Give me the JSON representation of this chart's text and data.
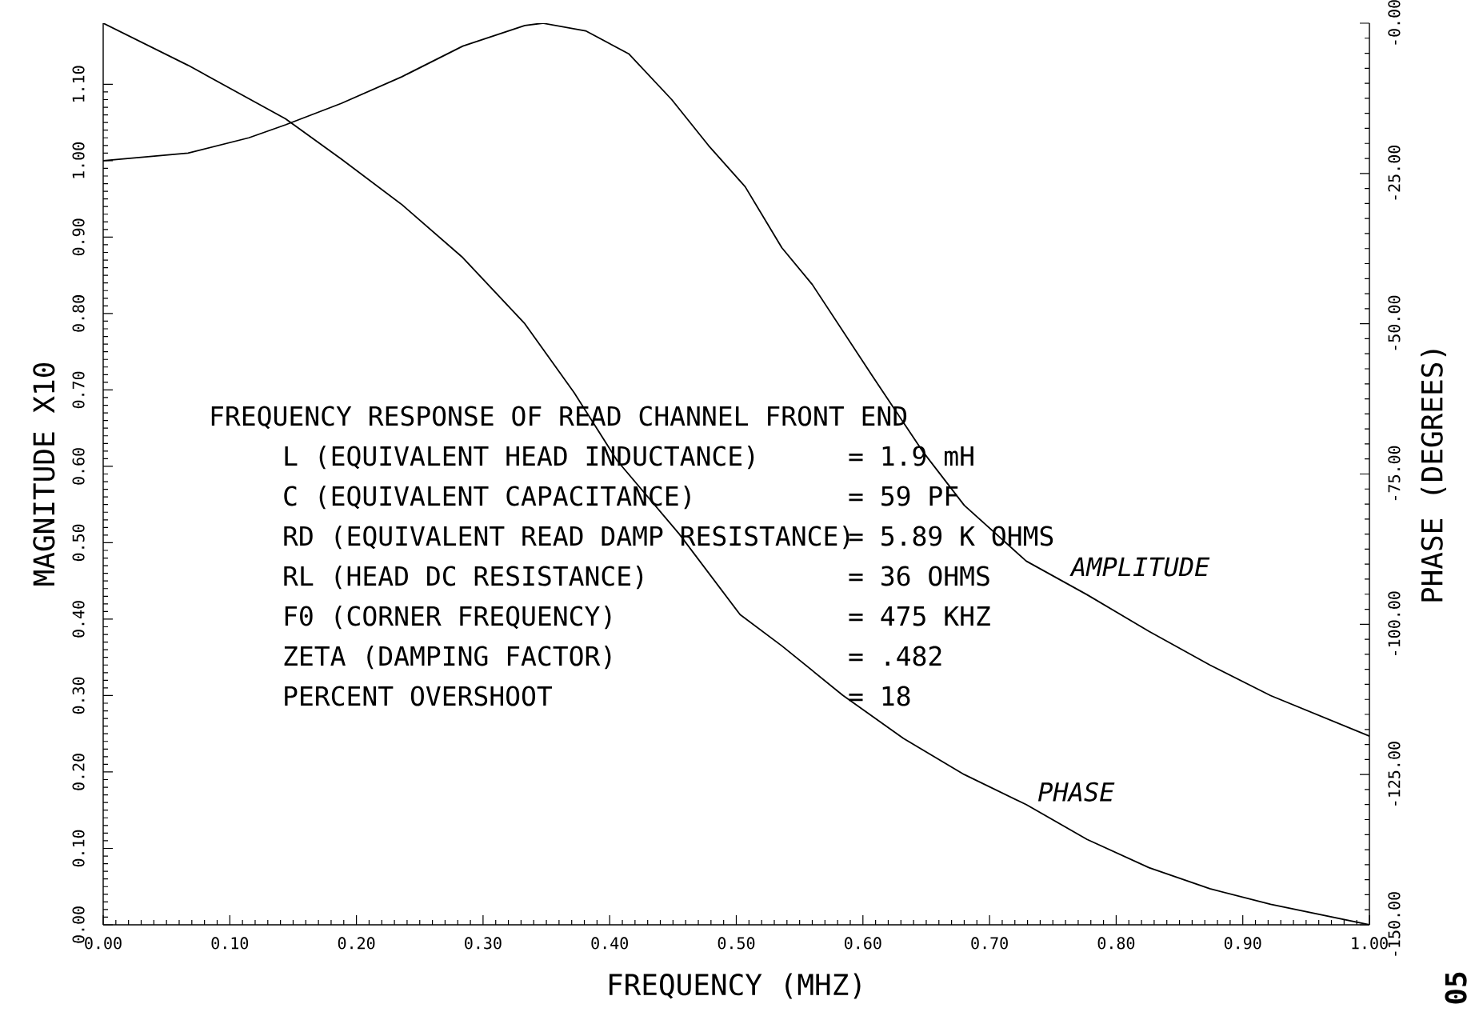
{
  "chart_data": {
    "type": "line",
    "title": "FREQUENCY RESPONSE OF READ CHANNEL FRONT END",
    "xlabel": "FREQUENCY (MHZ)",
    "ylabel": "MAGNITUDE X10",
    "y2label": "PHASE (DEGREES)",
    "series": [
      {
        "name": "AMPLITUDE",
        "color": "#000000",
        "x": [
          0,
          0.067,
          0.115,
          0.144,
          0.188,
          0.236,
          0.284,
          0.333,
          0.347,
          0.381,
          0.415,
          0.449,
          0.478,
          0.507,
          0.536,
          0.56,
          0.608,
          0.647,
          0.68,
          0.729,
          0.777,
          0.826,
          0.874,
          0.922,
          1.0
        ],
        "values": [
          1.0,
          1.01,
          1.03,
          1.047,
          1.075,
          1.11,
          1.15,
          1.177,
          1.18,
          1.17,
          1.14,
          1.08,
          1.02,
          0.966,
          0.886,
          0.838,
          0.717,
          0.62,
          0.549,
          0.476,
          0.432,
          0.384,
          0.34,
          0.3,
          0.247
        ]
      },
      {
        "name": "PHASE",
        "color": "#000000",
        "axis": "y2",
        "x": [
          0,
          0.067,
          0.144,
          0.188,
          0.236,
          0.284,
          0.333,
          0.372,
          0.406,
          0.455,
          0.503,
          0.536,
          0.584,
          0.632,
          0.68,
          0.729,
          0.777,
          0.826,
          0.874,
          0.922,
          1.0
        ],
        "values": [
          0,
          -7,
          -15.9,
          -22.6,
          -30.2,
          -39,
          -50,
          -61.5,
          -72.8,
          -85,
          -98.4,
          -103.6,
          -111.8,
          -119,
          -125,
          -130,
          -135.8,
          -140.5,
          -144,
          -146.6,
          -150
        ]
      }
    ],
    "xlim": [
      0,
      1
    ],
    "ylim": [
      0,
      1.18
    ],
    "y2lim": [
      -150,
      0
    ],
    "xticks": [
      {
        "value": 0,
        "label": "0.00"
      },
      {
        "value": 0.1,
        "label": "0.10"
      },
      {
        "value": 0.2,
        "label": "0.20"
      },
      {
        "value": 0.3,
        "label": "0.30"
      },
      {
        "value": 0.4,
        "label": "0.40"
      },
      {
        "value": 0.5,
        "label": "0.50"
      },
      {
        "value": 0.6,
        "label": "0.60"
      },
      {
        "value": 0.7,
        "label": "0.70"
      },
      {
        "value": 0.8,
        "label": "0.80"
      },
      {
        "value": 0.9,
        "label": "0.90"
      },
      {
        "value": 1,
        "label": "1.00"
      }
    ],
    "yticks": [
      {
        "value": 0,
        "label": "0.00"
      },
      {
        "value": 0.1,
        "label": "0.10"
      },
      {
        "value": 0.2,
        "label": "0.20"
      },
      {
        "value": 0.3,
        "label": "0.30"
      },
      {
        "value": 0.4,
        "label": "0.40"
      },
      {
        "value": 0.5,
        "label": "0.50"
      },
      {
        "value": 0.6,
        "label": "0.60"
      },
      {
        "value": 0.7,
        "label": "0.70"
      },
      {
        "value": 0.8,
        "label": "0.80"
      },
      {
        "value": 0.9,
        "label": "0.90"
      },
      {
        "value": 1,
        "label": "1.00"
      },
      {
        "value": 1.1,
        "label": "1.10"
      }
    ],
    "y2ticks": [
      {
        "value": -150,
        "label": "-150.00"
      },
      {
        "value": -125,
        "label": "-125.00"
      },
      {
        "value": -100,
        "label": "-100.00"
      },
      {
        "value": -75,
        "label": "-75.00"
      },
      {
        "value": -50,
        "label": "-50.00"
      },
      {
        "value": -25,
        "label": "-25.00"
      },
      {
        "value": 0,
        "label": "-0.00"
      }
    ],
    "annotations": [
      "L (EQUIVALENT HEAD INDUCTANCE)",
      "= 1.9 mH",
      "C (EQUIVALENT CAPACITANCE)",
      "= 59 PF",
      "RD (EQUIVALENT READ DAMP RESISTANCE)",
      "= 5.89 K OHMS",
      "RL (HEAD DC RESISTANCE)",
      "= 36 OHMS",
      "F0 (CORNER FREQUENCY)",
      "= 475 KHZ",
      "ZETA (DAMPING FACTOR)",
      "= .482",
      "PERCENT OVERSHOOT",
      "= 18",
      "05"
    ],
    "grid": false,
    "marker": "none",
    "line_style": "solid"
  }
}
